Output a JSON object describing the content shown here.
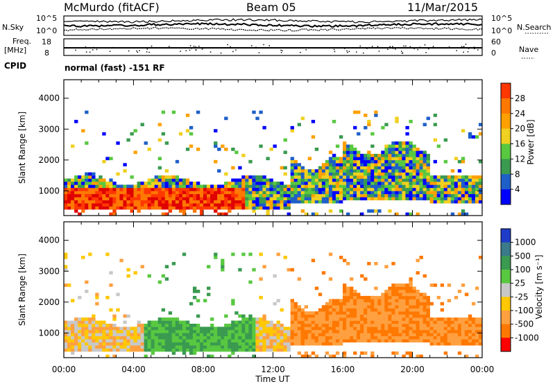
{
  "header": {
    "station": "McMurdo (fitACF)",
    "beam": "Beam 05",
    "date": "11/Mar/2015",
    "mode": "normal (fast) -151 RF"
  },
  "noise_panel": {
    "left_label": "N.Sky",
    "right_label": "N.Search",
    "left_ticks": [
      "10^5",
      "10^0"
    ],
    "right_ticks": [
      "10^5",
      "10^0"
    ]
  },
  "freq_panel": {
    "left_label_top": "Freq.",
    "left_label_unit": "[MHz]",
    "cpid_label": "CPID",
    "right_label": "Nave",
    "left_ticks": [
      "18",
      "8"
    ],
    "right_ticks": [
      "60",
      "0"
    ]
  },
  "colors": {
    "power": [
      "#0000ff",
      "#1e5fc8",
      "#3a9a50",
      "#58c840",
      "#f0d020",
      "#ffa000",
      "#ff7800",
      "#ff3800",
      "#e00000"
    ],
    "velocity": [
      "#1e3cc8",
      "#3a7a8a",
      "#3a9a50",
      "#58c840",
      "#c8c8c8",
      "#ffc800",
      "#ffa040",
      "#ff7800",
      "#ff0000"
    ]
  },
  "chart_data": [
    {
      "type": "heatmap",
      "name": "Power",
      "ylabel": "Slant Range [km]",
      "xlabel": "Time UT",
      "x_ticks": [
        "00:00",
        "04:00",
        "08:00",
        "12:00",
        "16:00",
        "20:00",
        "00:00"
      ],
      "y_ticks": [
        "1000",
        "2000",
        "3000",
        "4000"
      ],
      "y_tick_values": [
        1000,
        2000,
        3000,
        4000
      ],
      "ylim": [
        200,
        4600
      ],
      "xlim_hours": [
        0,
        24
      ],
      "colorbar_title": "Power [dB]",
      "colorbar_ticks": [
        "4",
        "8",
        "12",
        "16",
        "20",
        "24",
        "28"
      ]
    },
    {
      "type": "heatmap",
      "name": "Velocity",
      "ylabel": "Slant Range [km]",
      "xlabel": "Time UT",
      "x_ticks": [
        "00:00",
        "04:00",
        "08:00",
        "12:00",
        "16:00",
        "20:00",
        "00:00"
      ],
      "y_ticks": [
        "1000",
        "2000",
        "3000",
        "4000"
      ],
      "y_tick_values": [
        1000,
        2000,
        3000,
        4000
      ],
      "ylim": [
        200,
        4600
      ],
      "xlim_hours": [
        0,
        24
      ],
      "colorbar_title": "Velocity [m s⁻¹]",
      "colorbar_ticks": [
        "1000",
        "500",
        "100",
        "25",
        "-25",
        "-100",
        "-500",
        "-1000"
      ]
    }
  ],
  "xaxis_title": "Time UT"
}
